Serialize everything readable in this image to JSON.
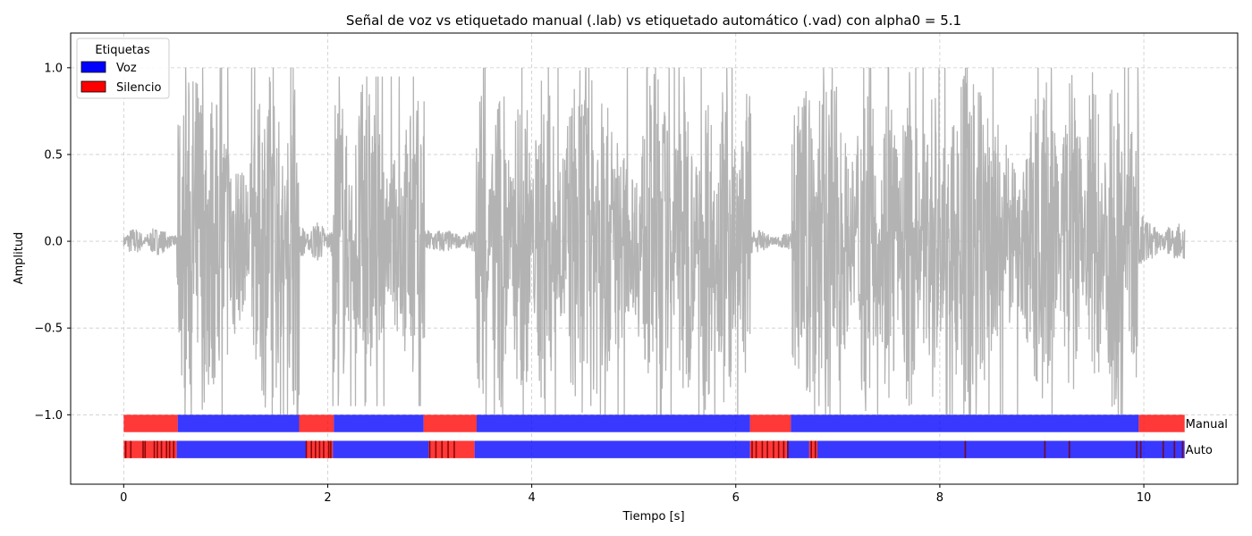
{
  "chart_data": {
    "type": "line",
    "title": "Señal de voz vs etiquetado manual (.lab) vs etiquetado automático (.vad) con alpha0 = 5.1",
    "xlabel": "Tiempo [s]",
    "ylabel": "Amplitud",
    "xlim": [
      -0.52,
      10.92
    ],
    "ylim": [
      -1.4,
      1.2
    ],
    "xticks": [
      0,
      2,
      4,
      6,
      8,
      10
    ],
    "xtick_labels": [
      "0",
      "2",
      "4",
      "6",
      "8",
      "10"
    ],
    "yticks": [
      -1.0,
      -0.5,
      0.0,
      0.5,
      1.0
    ],
    "ytick_labels": [
      "−1.0",
      "−0.5",
      "0.0",
      "0.5",
      "1.0"
    ],
    "grid": true,
    "waveform": {
      "color": "#b3b3b3",
      "duration": 10.4,
      "envelope": [
        {
          "t0": 0.0,
          "t1": 0.52,
          "amp": 0.08
        },
        {
          "t0": 0.52,
          "t1": 1.72,
          "amp": 1.0
        },
        {
          "t0": 1.72,
          "t1": 2.05,
          "amp": 0.12
        },
        {
          "t0": 2.05,
          "t1": 2.95,
          "amp": 0.95
        },
        {
          "t0": 2.95,
          "t1": 3.45,
          "amp": 0.07
        },
        {
          "t0": 3.45,
          "t1": 6.15,
          "amp": 1.0
        },
        {
          "t0": 6.15,
          "t1": 6.55,
          "amp": 0.07
        },
        {
          "t0": 6.55,
          "t1": 9.95,
          "amp": 1.0
        },
        {
          "t0": 9.95,
          "t1": 10.4,
          "amp": 0.15
        }
      ]
    },
    "label_tracks": [
      {
        "name": "Manual",
        "y_center": -1.05,
        "height": 0.1,
        "segments": [
          {
            "start": 0.0,
            "end": 0.53,
            "label": "Silencio"
          },
          {
            "start": 0.53,
            "end": 1.72,
            "label": "Voz"
          },
          {
            "start": 1.72,
            "end": 2.06,
            "label": "Silencio"
          },
          {
            "start": 2.06,
            "end": 2.94,
            "label": "Voz"
          },
          {
            "start": 2.94,
            "end": 3.46,
            "label": "Silencio"
          },
          {
            "start": 3.46,
            "end": 6.14,
            "label": "Voz"
          },
          {
            "start": 6.14,
            "end": 6.54,
            "label": "Silencio"
          },
          {
            "start": 6.54,
            "end": 9.95,
            "label": "Voz"
          },
          {
            "start": 9.95,
            "end": 10.4,
            "label": "Silencio"
          }
        ]
      },
      {
        "name": "Auto",
        "y_center": -1.2,
        "height": 0.1,
        "segments": [
          {
            "start": 0.0,
            "end": 0.52,
            "label": "Silencio"
          },
          {
            "start": 0.52,
            "end": 1.79,
            "label": "Voz"
          },
          {
            "start": 1.79,
            "end": 2.05,
            "label": "Silencio"
          },
          {
            "start": 2.05,
            "end": 2.99,
            "label": "Voz"
          },
          {
            "start": 2.99,
            "end": 3.44,
            "label": "Silencio"
          },
          {
            "start": 3.44,
            "end": 6.14,
            "label": "Voz"
          },
          {
            "start": 6.14,
            "end": 6.5,
            "label": "Silencio"
          },
          {
            "start": 6.5,
            "end": 6.72,
            "label": "Voz"
          },
          {
            "start": 6.72,
            "end": 6.8,
            "label": "Silencio"
          },
          {
            "start": 6.8,
            "end": 10.4,
            "label": "Voz"
          }
        ],
        "transitions": [
          0.02,
          0.07,
          0.19,
          0.21,
          0.3,
          0.33,
          0.37,
          0.42,
          0.45,
          0.49,
          1.79,
          1.84,
          1.88,
          1.92,
          1.96,
          2.01,
          2.03,
          3.0,
          3.06,
          3.12,
          3.18,
          3.24,
          6.16,
          6.2,
          6.26,
          6.31,
          6.37,
          6.42,
          6.47,
          6.51,
          6.74,
          6.78,
          8.25,
          9.03,
          9.27,
          9.93,
          9.97,
          10.19,
          10.3,
          10.38
        ]
      }
    ],
    "colors": {
      "Voz": "#0000ff",
      "Silencio": "#ff0000"
    },
    "legend": {
      "title": "Etiquetas",
      "placement": "top-left",
      "entries": [
        {
          "label": "Voz",
          "color": "#0000ff"
        },
        {
          "label": "Silencio",
          "color": "#ff0000"
        }
      ]
    }
  }
}
